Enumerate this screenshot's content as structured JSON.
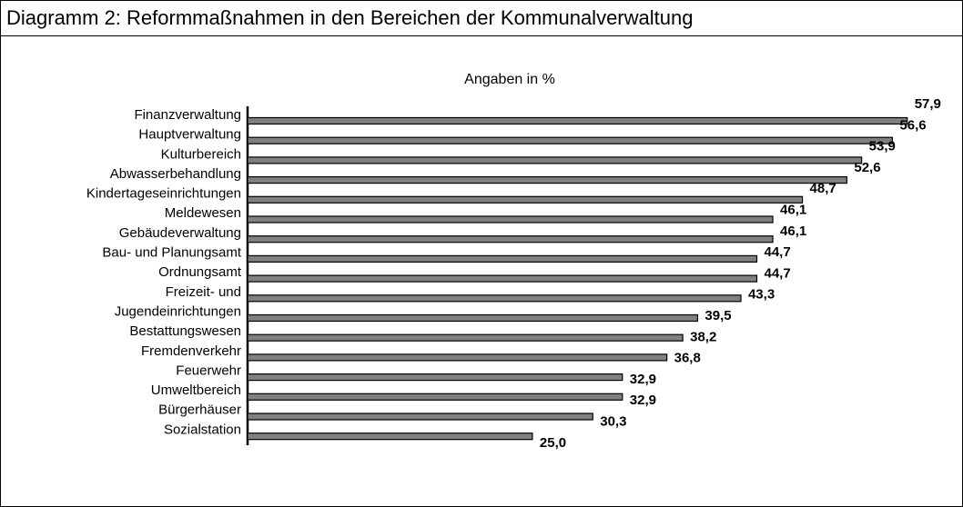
{
  "chart_data": {
    "type": "hbar",
    "title": "Diagramm 2: Reformmaßnahmen in den Bereichen der Kommunalverwaltung",
    "subtitle": "Angaben in %",
    "categories": [
      "Finanzverwaltung",
      "Hauptverwaltung",
      "Kulturbereich",
      "Abwasserbehandlung",
      "Kindertageseinrichtungen",
      "Meldewesen",
      "Gebäudeverwaltung",
      "Bau- und Planungsamt",
      "Ordnungsamt",
      "Freizeit- und",
      "Jugendeinrichtungen",
      "Bestattungswesen",
      "Fremdenverkehr",
      "Feuerwehr",
      "Umweltbereich",
      "Bürgerhäuser",
      "Sozialstation"
    ],
    "values": [
      57.9,
      56.6,
      53.9,
      52.6,
      48.7,
      46.1,
      46.1,
      44.7,
      44.7,
      43.3,
      39.5,
      38.2,
      36.8,
      32.9,
      32.9,
      30.3,
      25.0
    ],
    "value_labels": [
      "57,9",
      "56,6",
      "53,9",
      "52,6",
      "48,7",
      "46,1",
      "46,1",
      "44,7",
      "44,7",
      "43,3",
      "39,5",
      "38,2",
      "36,8",
      "32,9",
      "32,9",
      "30,3",
      "25,0"
    ],
    "color": "#808080",
    "xlim": [
      0,
      60
    ]
  }
}
